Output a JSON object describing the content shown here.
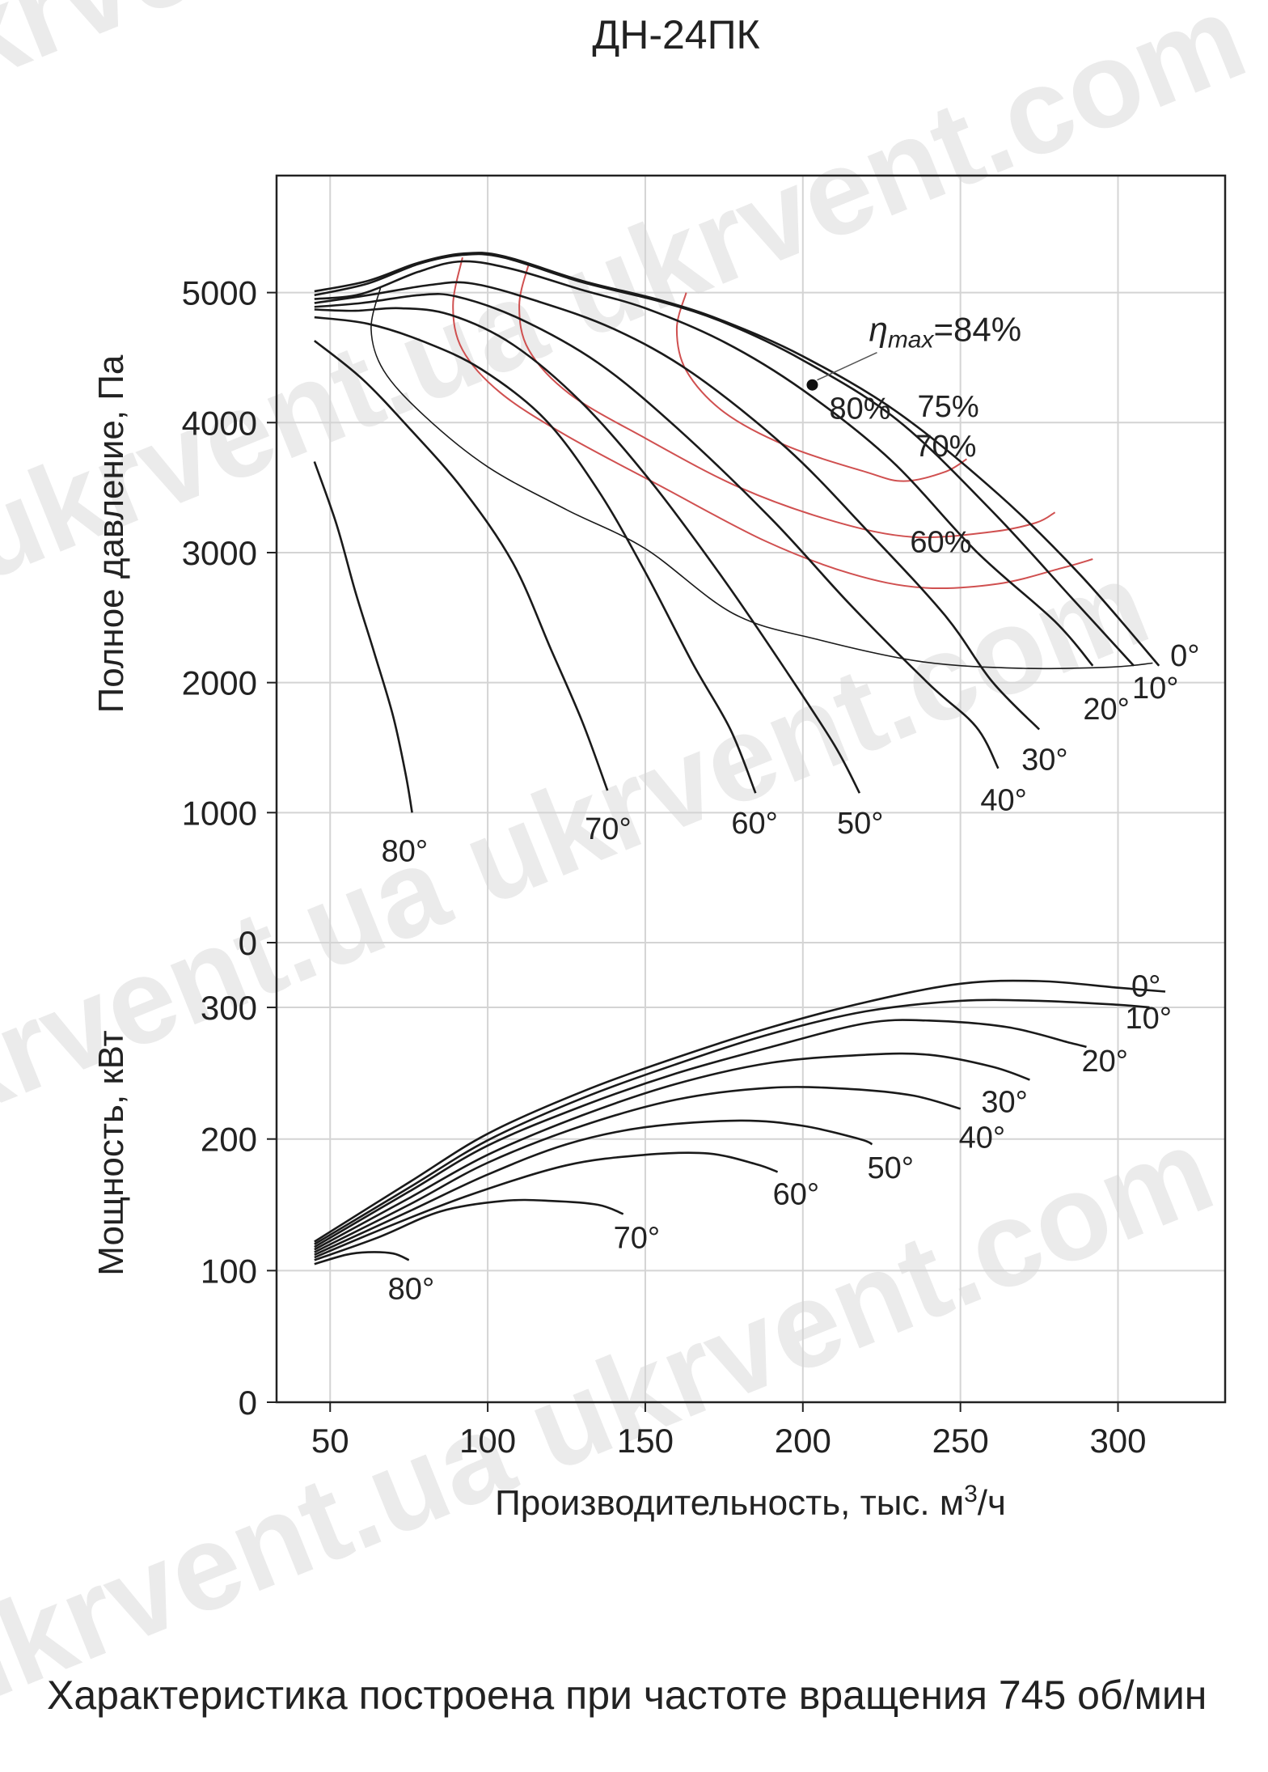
{
  "chart_data": {
    "type": "line",
    "title": "ДН-24ПК",
    "caption": "Характеристика построена при частоте вращения 745 об/мин",
    "watermark": "ukrvent.ua ukrvent.com",
    "xlabel": "Производительность, тыс. м³/ч",
    "xlabel_main": "Производительность, тыс. м",
    "xlabel_sup": "3",
    "xlabel_tail": "/ч",
    "x_ticks": [
      "50",
      "100",
      "150",
      "200",
      "250",
      "300"
    ],
    "xlim": [
      33,
      334
    ],
    "pressure_panel": {
      "ylabel": "Полное давление, Па",
      "ylim": [
        0,
        5900
      ],
      "y_ticks": [
        "0",
        "1000",
        "2000",
        "3000",
        "4000",
        "5000"
      ],
      "series": [
        {
          "name": "0°",
          "points": [
            [
              45,
              5010
            ],
            [
              62,
              5090
            ],
            [
              78,
              5230
            ],
            [
              92,
              5300
            ],
            [
              105,
              5280
            ],
            [
              130,
              5090
            ],
            [
              155,
              4940
            ],
            [
              175,
              4780
            ],
            [
              200,
              4510
            ],
            [
              230,
              4080
            ],
            [
              262,
              3450
            ],
            [
              288,
              2830
            ],
            [
              313,
              2130
            ]
          ]
        },
        {
          "name": "10°",
          "points": [
            [
              45,
              4980
            ],
            [
              62,
              5070
            ],
            [
              78,
              5220
            ],
            [
              92,
              5290
            ],
            [
              105,
              5270
            ],
            [
              130,
              5080
            ],
            [
              155,
              4930
            ],
            [
              175,
              4770
            ],
            [
              200,
              4480
            ],
            [
              230,
              4020
            ],
            [
              260,
              3320
            ],
            [
              285,
              2660
            ],
            [
              305,
              2130
            ]
          ]
        },
        {
          "name": "20°",
          "points": [
            [
              45,
              4950
            ],
            [
              60,
              4990
            ],
            [
              78,
              5160
            ],
            [
              92,
              5240
            ],
            [
              108,
              5180
            ],
            [
              130,
              5020
            ],
            [
              150,
              4880
            ],
            [
              175,
              4620
            ],
            [
              200,
              4250
            ],
            [
              228,
              3710
            ],
            [
              255,
              3010
            ],
            [
              280,
              2470
            ],
            [
              292,
              2130
            ]
          ]
        },
        {
          "name": "30°",
          "points": [
            [
              45,
              4920
            ],
            [
              62,
              4980
            ],
            [
              82,
              5060
            ],
            [
              95,
              5070
            ],
            [
              115,
              4940
            ],
            [
              140,
              4720
            ],
            [
              165,
              4380
            ],
            [
              195,
              3800
            ],
            [
              220,
              3180
            ],
            [
              245,
              2520
            ],
            [
              260,
              2010
            ],
            [
              275,
              1640
            ]
          ]
        },
        {
          "name": "40°",
          "points": [
            [
              45,
              4890
            ],
            [
              60,
              4920
            ],
            [
              78,
              4980
            ],
            [
              90,
              4970
            ],
            [
              110,
              4800
            ],
            [
              135,
              4460
            ],
            [
              160,
              3960
            ],
            [
              190,
              3260
            ],
            [
              215,
              2600
            ],
            [
              240,
              1990
            ],
            [
              255,
              1660
            ],
            [
              262,
              1340
            ]
          ]
        },
        {
          "name": "50°",
          "points": [
            [
              45,
              4870
            ],
            [
              58,
              4860
            ],
            [
              72,
              4880
            ],
            [
              88,
              4830
            ],
            [
              108,
              4600
            ],
            [
              130,
              4150
            ],
            [
              152,
              3540
            ],
            [
              175,
              2790
            ],
            [
              195,
              2080
            ],
            [
              210,
              1520
            ],
            [
              218,
              1150
            ]
          ]
        },
        {
          "name": "60°",
          "points": [
            [
              45,
              4810
            ],
            [
              62,
              4760
            ],
            [
              80,
              4620
            ],
            [
              98,
              4410
            ],
            [
              118,
              4030
            ],
            [
              135,
              3480
            ],
            [
              150,
              2850
            ],
            [
              165,
              2150
            ],
            [
              177,
              1640
            ],
            [
              185,
              1150
            ]
          ]
        },
        {
          "name": "70°",
          "points": [
            [
              45,
              4630
            ],
            [
              60,
              4340
            ],
            [
              75,
              3960
            ],
            [
              92,
              3490
            ],
            [
              108,
              2920
            ],
            [
              120,
              2260
            ],
            [
              130,
              1700
            ],
            [
              138,
              1170
            ]
          ]
        },
        {
          "name": "80°",
          "points": [
            [
              45,
              3700
            ],
            [
              52,
              3220
            ],
            [
              58,
              2700
            ],
            [
              64,
              2230
            ],
            [
              70,
              1740
            ],
            [
              74,
              1290
            ],
            [
              76,
              1000
            ]
          ]
        }
      ],
      "efficiency": [
        {
          "name": "80%",
          "points": [
            [
              163,
              5000
            ],
            [
              160,
              4720
            ],
            [
              163,
              4400
            ],
            [
              175,
              4080
            ],
            [
              195,
              3820
            ],
            [
              220,
              3620
            ],
            [
              232,
              3550
            ],
            [
              245,
              3620
            ],
            [
              252,
              3720
            ]
          ]
        },
        {
          "name": "75%",
          "points": [
            [
              113,
              5220
            ],
            [
              110,
              4900
            ],
            [
              113,
              4560
            ],
            [
              126,
              4220
            ],
            [
              150,
              3880
            ],
            [
              180,
              3500
            ],
            [
              210,
              3240
            ],
            [
              235,
              3120
            ],
            [
              260,
              3160
            ],
            [
              274,
              3230
            ],
            [
              280,
              3310
            ]
          ]
        },
        {
          "name": "70%",
          "points": [
            [
              92,
              5270
            ],
            [
              89,
              4900
            ],
            [
              92,
              4560
            ],
            [
              104,
              4230
            ],
            [
              125,
              3900
            ],
            [
              155,
              3510
            ],
            [
              188,
              3090
            ],
            [
              215,
              2840
            ],
            [
              238,
              2730
            ],
            [
              262,
              2760
            ],
            [
              282,
              2880
            ],
            [
              292,
              2950
            ]
          ]
        },
        {
          "name": "60%",
          "points": [
            [
              66,
              5040
            ],
            [
              63,
              4720
            ],
            [
              67,
              4400
            ],
            [
              80,
              4050
            ],
            [
              100,
              3660
            ],
            [
              125,
              3330
            ],
            [
              150,
              3030
            ],
            [
              178,
              2530
            ],
            [
              205,
              2330
            ],
            [
              238,
              2160
            ],
            [
              270,
              2110
            ],
            [
              298,
              2120
            ],
            [
              311,
              2150
            ]
          ]
        }
      ],
      "eta_max": {
        "label": "ηmax=84%",
        "symbol": "η",
        "sub": "max",
        "value_text": "=84%",
        "x": 203,
        "y": 4290
      }
    },
    "power_panel": {
      "ylabel": "Мощность, кВт",
      "ylim": [
        0,
        340
      ],
      "y_ticks": [
        "0",
        "100",
        "200",
        "300"
      ],
      "series": [
        {
          "name": "0°",
          "points": [
            [
              45,
              122
            ],
            [
              75,
              167
            ],
            [
              100,
              204
            ],
            [
              130,
              236
            ],
            [
              160,
              262
            ],
            [
              190,
              285
            ],
            [
              220,
              304
            ],
            [
              250,
              318
            ],
            [
              275,
              320
            ],
            [
              300,
              315
            ],
            [
              315,
              312
            ]
          ]
        },
        {
          "name": "10°",
          "points": [
            [
              45,
              120
            ],
            [
              75,
              163
            ],
            [
              100,
              199
            ],
            [
              130,
              231
            ],
            [
              160,
              257
            ],
            [
              190,
              280
            ],
            [
              220,
              297
            ],
            [
              250,
              305
            ],
            [
              275,
              305
            ],
            [
              300,
              302
            ],
            [
              310,
              300
            ]
          ]
        },
        {
          "name": "20°",
          "points": [
            [
              45,
              118
            ],
            [
              75,
              160
            ],
            [
              100,
              195
            ],
            [
              130,
              225
            ],
            [
              160,
              250
            ],
            [
              190,
              270
            ],
            [
              220,
              288
            ],
            [
              240,
              290
            ],
            [
              265,
              285
            ],
            [
              285,
              273
            ],
            [
              290,
              270
            ]
          ]
        },
        {
          "name": "30°",
          "points": [
            [
              45,
              116
            ],
            [
              75,
              155
            ],
            [
              100,
              188
            ],
            [
              130,
              218
            ],
            [
              160,
              242
            ],
            [
              190,
              258
            ],
            [
              220,
              264
            ],
            [
              240,
              264
            ],
            [
              260,
              255
            ],
            [
              272,
              245
            ]
          ]
        },
        {
          "name": "40°",
          "points": [
            [
              45,
              114
            ],
            [
              75,
              150
            ],
            [
              100,
              182
            ],
            [
              130,
              210
            ],
            [
              160,
              230
            ],
            [
              190,
              239
            ],
            [
              215,
              238
            ],
            [
              235,
              233
            ],
            [
              250,
              223
            ]
          ]
        },
        {
          "name": "50°",
          "points": [
            [
              45,
              112
            ],
            [
              75,
              145
            ],
            [
              100,
              173
            ],
            [
              125,
              196
            ],
            [
              150,
              209
            ],
            [
              180,
              214
            ],
            [
              200,
              210
            ],
            [
              218,
              200
            ],
            [
              222,
              196
            ]
          ]
        },
        {
          "name": "60°",
          "points": [
            [
              45,
              110
            ],
            [
              70,
              135
            ],
            [
              95,
              158
            ],
            [
              125,
              180
            ],
            [
              150,
              188
            ],
            [
              170,
              189
            ],
            [
              185,
              181
            ],
            [
              192,
              175
            ]
          ]
        },
        {
          "name": "70°",
          "points": [
            [
              45,
              108
            ],
            [
              65,
              125
            ],
            [
              85,
              145
            ],
            [
              105,
              153
            ],
            [
              120,
              153
            ],
            [
              135,
              150
            ],
            [
              143,
              143
            ]
          ]
        },
        {
          "name": "80°",
          "points": [
            [
              45,
              105
            ],
            [
              55,
              112
            ],
            [
              62,
              114
            ],
            [
              70,
              113
            ],
            [
              75,
              108
            ]
          ]
        }
      ]
    }
  }
}
